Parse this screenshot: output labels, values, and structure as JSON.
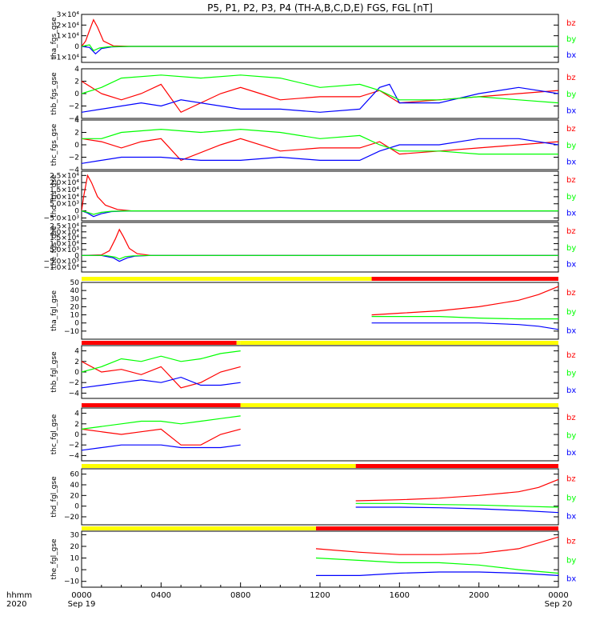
{
  "title": "P5, P1, P2, P3, P4 (TH-A,B,C,D,E) FGS, FGL [nT]",
  "colors": {
    "bx": "#0000ff",
    "by": "#00ff00",
    "bz": "#ff0000",
    "axes": "#000000",
    "bar_yellow": "#ffff00",
    "bar_red": "#ff0000"
  },
  "x_axis": {
    "ticks": [
      0,
      4,
      8,
      12,
      16,
      20,
      24
    ],
    "tick_labels": [
      "0000",
      "0400",
      "0800",
      "1200",
      "1600",
      "2000",
      "0000"
    ],
    "date_labels": [
      "Sep 19",
      "Sep 20"
    ],
    "corner_labels": [
      "hhmm",
      "2020"
    ],
    "unit": "hours"
  },
  "legend": [
    "bz",
    "by",
    "bx"
  ],
  "chart_data": [
    {
      "type": "line",
      "ylabel": "tha_fgs_gse",
      "ylim": [
        -15000,
        30000
      ],
      "tick_values": [
        -10000,
        0,
        10000,
        20000,
        30000
      ],
      "tick_labels": [
        "−1×10⁴",
        "0",
        "1×10⁴",
        "2×10⁴",
        "3×10⁴"
      ],
      "series": [
        {
          "name": "bx",
          "x": [
            0,
            0.4,
            0.7,
            1.0,
            1.5,
            2.5,
            24
          ],
          "y": [
            0,
            -1000,
            -7000,
            -2000,
            -500,
            0,
            0
          ]
        },
        {
          "name": "by",
          "x": [
            0,
            0.4,
            0.6,
            0.9,
            1.4,
            2.5,
            24
          ],
          "y": [
            0,
            1500,
            -4000,
            -1500,
            -300,
            0,
            0
          ]
        },
        {
          "name": "bz",
          "x": [
            0,
            0.2,
            0.4,
            0.6,
            0.8,
            1.1,
            1.6,
            2.5,
            24
          ],
          "y": [
            0,
            5000,
            15000,
            25000,
            18000,
            5000,
            500,
            0,
            0
          ]
        }
      ]
    },
    {
      "type": "line",
      "ylabel": "thb_fgs_gse",
      "ylim": [
        -4,
        4
      ],
      "tick_values": [
        -4,
        -2,
        0,
        2,
        4
      ],
      "tick_labels": [
        "−4",
        "−2",
        "0",
        "2",
        "4"
      ],
      "series": [
        {
          "name": "bx",
          "x": [
            0,
            1,
            3,
            4,
            5,
            8,
            10,
            12,
            14,
            15,
            15.5,
            16,
            18,
            20,
            22,
            24
          ],
          "y": [
            -3,
            -2.5,
            -1.5,
            -2,
            -1,
            -2.5,
            -2.5,
            -3,
            -2.5,
            1,
            1.5,
            -1.5,
            -1.5,
            0,
            1,
            0
          ]
        },
        {
          "name": "by",
          "x": [
            0,
            1,
            2,
            4,
            6,
            8,
            10,
            12,
            14,
            15,
            16,
            18,
            20,
            22,
            24
          ],
          "y": [
            0,
            1,
            2.5,
            3,
            2.5,
            3,
            2.5,
            1,
            1.5,
            0.5,
            -1,
            -1,
            -0.5,
            -1,
            -1.5
          ]
        },
        {
          "name": "bz",
          "x": [
            0,
            1,
            2,
            3,
            4,
            5,
            7,
            8,
            9,
            10,
            12,
            14,
            15,
            16,
            18,
            20,
            22,
            24
          ],
          "y": [
            2,
            0,
            -1,
            0,
            1.5,
            -3,
            0,
            1,
            0,
            -1,
            -0.5,
            -0.5,
            0.5,
            -1.5,
            -1,
            -0.5,
            0,
            0.5
          ]
        }
      ]
    },
    {
      "type": "line",
      "ylabel": "thc_fgs_gse",
      "ylim": [
        -4,
        4
      ],
      "tick_values": [
        -4,
        -2,
        0,
        2,
        4
      ],
      "tick_labels": [
        "−4",
        "−2",
        "0",
        "2",
        "4"
      ],
      "series": [
        {
          "name": "bx",
          "x": [
            0,
            1,
            2,
            4,
            6,
            8,
            10,
            12,
            14,
            15,
            16,
            18,
            20,
            22,
            24
          ],
          "y": [
            -3,
            -2.5,
            -2,
            -2,
            -2.5,
            -2.5,
            -2,
            -2.5,
            -2.5,
            -1,
            0,
            0,
            1,
            1,
            0
          ]
        },
        {
          "name": "by",
          "x": [
            0,
            1,
            2,
            4,
            6,
            8,
            10,
            12,
            14,
            15,
            16,
            18,
            20,
            22,
            24
          ],
          "y": [
            1,
            1,
            2,
            2.5,
            2,
            2.5,
            2,
            1,
            1.5,
            0,
            -1,
            -1,
            -1.5,
            -1.5,
            -1.5
          ]
        },
        {
          "name": "bz",
          "x": [
            0,
            1,
            2,
            3,
            4,
            5,
            7,
            8,
            10,
            12,
            14,
            15,
            16,
            18,
            20,
            22,
            24
          ],
          "y": [
            1,
            0.5,
            -0.5,
            0.5,
            1,
            -2.5,
            0,
            1,
            -1,
            -0.5,
            -0.5,
            0.5,
            -1.5,
            -1,
            -0.5,
            0,
            0.5
          ]
        }
      ]
    },
    {
      "type": "line",
      "ylabel": "thd_fgs_gse",
      "ylim": [
        -7000,
        28000
      ],
      "tick_values": [
        -5000,
        0,
        5000,
        10000,
        15000,
        20000,
        25000
      ],
      "tick_labels": [
        "−5.0×10³",
        "0",
        "5.0×10³",
        "1.0×10⁴",
        "1.5×10⁴",
        "2.0×10⁴",
        "2.5×10⁴"
      ],
      "series": [
        {
          "name": "bx",
          "x": [
            0,
            0.3,
            0.6,
            1.0,
            1.5,
            2.5,
            24
          ],
          "y": [
            0,
            -1500,
            -4000,
            -2000,
            -500,
            0,
            0
          ]
        },
        {
          "name": "by",
          "x": [
            0,
            0.3,
            0.6,
            1.0,
            1.5,
            2.5,
            24
          ],
          "y": [
            0,
            -1000,
            -2500,
            -1000,
            -300,
            0,
            0
          ]
        },
        {
          "name": "bz",
          "x": [
            0,
            0.1,
            0.3,
            0.5,
            0.8,
            1.2,
            1.8,
            2.5,
            24
          ],
          "y": [
            0,
            10000,
            25000,
            20000,
            10000,
            4000,
            1000,
            0,
            0
          ]
        }
      ]
    },
    {
      "type": "line",
      "ylabel": "the_fgs_gse",
      "ylim": [
        -14000,
        28000
      ],
      "tick_values": [
        -10000,
        -5000,
        0,
        5000,
        10000,
        15000,
        20000,
        25000
      ],
      "tick_labels": [
        "−1.0×10⁴",
        "−5.0×10³",
        "0",
        "5.0×10³",
        "1.0×10⁴",
        "1.5×10⁴",
        "2.0×10⁴",
        "2.5×10⁴"
      ],
      "series": [
        {
          "name": "bx",
          "x": [
            0,
            1.0,
            1.6,
            1.9,
            2.3,
            2.7,
            3.5,
            24
          ],
          "y": [
            0,
            0,
            -2000,
            -5000,
            -2000,
            -500,
            0,
            0
          ]
        },
        {
          "name": "by",
          "x": [
            0,
            1.2,
            1.7,
            1.9,
            2.2,
            2.6,
            3.5,
            24
          ],
          "y": [
            0,
            0,
            -1500,
            -3000,
            -1000,
            -300,
            0,
            0
          ]
        },
        {
          "name": "bz",
          "x": [
            0,
            1.0,
            1.4,
            1.7,
            1.9,
            2.1,
            2.4,
            2.8,
            3.5,
            24
          ],
          "y": [
            0,
            500,
            4000,
            14000,
            22000,
            16000,
            6000,
            1500,
            0,
            0
          ]
        }
      ]
    },
    {
      "type": "line",
      "ylabel": "tha_fgl_gse",
      "ylim": [
        -20,
        50
      ],
      "tick_values": [
        -10,
        0,
        10,
        20,
        30,
        40,
        50
      ],
      "tick_labels": [
        "−10",
        "0",
        "10",
        "20",
        "30",
        "40",
        "50"
      ],
      "series": [
        {
          "name": "bx",
          "x": [
            14.6,
            16,
            18,
            20,
            22,
            23,
            24
          ],
          "y": [
            0,
            0,
            0,
            0,
            -2,
            -4,
            -8
          ]
        },
        {
          "name": "by",
          "x": [
            14.6,
            16,
            18,
            20,
            22,
            24
          ],
          "y": [
            8,
            8,
            8,
            6,
            5,
            5
          ]
        },
        {
          "name": "bz",
          "x": [
            14.6,
            16,
            18,
            20,
            22,
            23,
            24
          ],
          "y": [
            10,
            12,
            15,
            20,
            28,
            35,
            45
          ]
        }
      ]
    },
    {
      "type": "line",
      "ylabel": "thb_fgl_gse",
      "ylim": [
        -5,
        5
      ],
      "tick_values": [
        -4,
        -2,
        0,
        2,
        4
      ],
      "tick_labels": [
        "−4",
        "−2",
        "0",
        "2",
        "4"
      ],
      "series": [
        {
          "name": "bx",
          "x": [
            0,
            1,
            2,
            3,
            4,
            5,
            6,
            7,
            8
          ],
          "y": [
            -3,
            -2.5,
            -2,
            -1.5,
            -2,
            -1,
            -2.5,
            -2.5,
            -2
          ]
        },
        {
          "name": "by",
          "x": [
            0,
            1,
            2,
            3,
            4,
            5,
            6,
            7,
            8
          ],
          "y": [
            0,
            1,
            2.5,
            2,
            3,
            2,
            2.5,
            3.5,
            4
          ]
        },
        {
          "name": "bz",
          "x": [
            0,
            1,
            2,
            3,
            4,
            5,
            6,
            7,
            8
          ],
          "y": [
            2,
            0,
            0.5,
            -0.5,
            1,
            -3,
            -2,
            0,
            1
          ]
        }
      ]
    },
    {
      "type": "line",
      "ylabel": "thc_fgl_gse",
      "ylim": [
        -5,
        5
      ],
      "tick_values": [
        -4,
        -2,
        0,
        2,
        4
      ],
      "tick_labels": [
        "−4",
        "−2",
        "0",
        "2",
        "4"
      ],
      "series": [
        {
          "name": "bx",
          "x": [
            0,
            1,
            2,
            3,
            4,
            5,
            6,
            7,
            8
          ],
          "y": [
            -3,
            -2.5,
            -2,
            -2,
            -2,
            -2.5,
            -2.5,
            -2.5,
            -2
          ]
        },
        {
          "name": "by",
          "x": [
            0,
            1,
            2,
            3,
            4,
            5,
            6,
            7,
            8
          ],
          "y": [
            1,
            1.5,
            2,
            2.5,
            2.5,
            2,
            2.5,
            3,
            3.5
          ]
        },
        {
          "name": "bz",
          "x": [
            0,
            1,
            2,
            3,
            4,
            5,
            6,
            7,
            8
          ],
          "y": [
            1,
            0.5,
            0,
            0.5,
            1,
            -2,
            -2,
            0,
            1
          ]
        }
      ]
    },
    {
      "type": "line",
      "ylabel": "thd_fgl_gse",
      "ylim": [
        -35,
        70
      ],
      "tick_values": [
        -20,
        0,
        20,
        40,
        60
      ],
      "tick_labels": [
        "−20",
        "0",
        "20",
        "40",
        "60"
      ],
      "series": [
        {
          "name": "bx",
          "x": [
            13.8,
            16,
            18,
            20,
            22,
            24
          ],
          "y": [
            -2,
            -2,
            -3,
            -5,
            -8,
            -12
          ]
        },
        {
          "name": "by",
          "x": [
            13.8,
            16,
            18,
            20,
            22,
            24
          ],
          "y": [
            5,
            5,
            3,
            2,
            0,
            -2
          ]
        },
        {
          "name": "bz",
          "x": [
            13.8,
            16,
            18,
            20,
            22,
            23,
            24
          ],
          "y": [
            10,
            12,
            15,
            20,
            27,
            35,
            50
          ]
        }
      ]
    },
    {
      "type": "line",
      "ylabel": "the_fgl_gse",
      "ylim": [
        -15,
        33
      ],
      "tick_values": [
        -10,
        0,
        10,
        20,
        30
      ],
      "tick_labels": [
        "−10",
        "0",
        "10",
        "20",
        "30"
      ],
      "series": [
        {
          "name": "bx",
          "x": [
            11.8,
            14,
            16,
            18,
            20,
            22,
            24
          ],
          "y": [
            -5,
            -5,
            -3,
            -2,
            -2,
            -3,
            -5
          ]
        },
        {
          "name": "by",
          "x": [
            11.8,
            14,
            16,
            18,
            20,
            22,
            24
          ],
          "y": [
            10,
            8,
            6,
            6,
            4,
            0,
            -3
          ]
        },
        {
          "name": "bz",
          "x": [
            11.8,
            14,
            16,
            18,
            20,
            22,
            24
          ],
          "y": [
            18,
            15,
            13,
            13,
            14,
            18,
            28
          ]
        }
      ]
    }
  ],
  "mode_bars": [
    {
      "segments": [
        {
          "from": 0,
          "to": 14.6,
          "color": "yellow"
        },
        {
          "from": 14.6,
          "to": 24,
          "color": "red"
        }
      ]
    },
    {
      "segments": [
        {
          "from": 0,
          "to": 7.8,
          "color": "red"
        },
        {
          "from": 7.8,
          "to": 8,
          "color": "yellow"
        },
        {
          "from": 8,
          "to": 24,
          "color": "yellow"
        }
      ]
    },
    {
      "segments": [
        {
          "from": 0,
          "to": 8,
          "color": "red"
        },
        {
          "from": 8,
          "to": 24,
          "color": "yellow"
        }
      ]
    },
    {
      "segments": [
        {
          "from": 0,
          "to": 13.8,
          "color": "yellow"
        },
        {
          "from": 13.8,
          "to": 24,
          "color": "red"
        }
      ]
    },
    {
      "segments": [
        {
          "from": 0,
          "to": 11.8,
          "color": "yellow"
        },
        {
          "from": 11.8,
          "to": 24,
          "color": "red"
        }
      ]
    }
  ]
}
